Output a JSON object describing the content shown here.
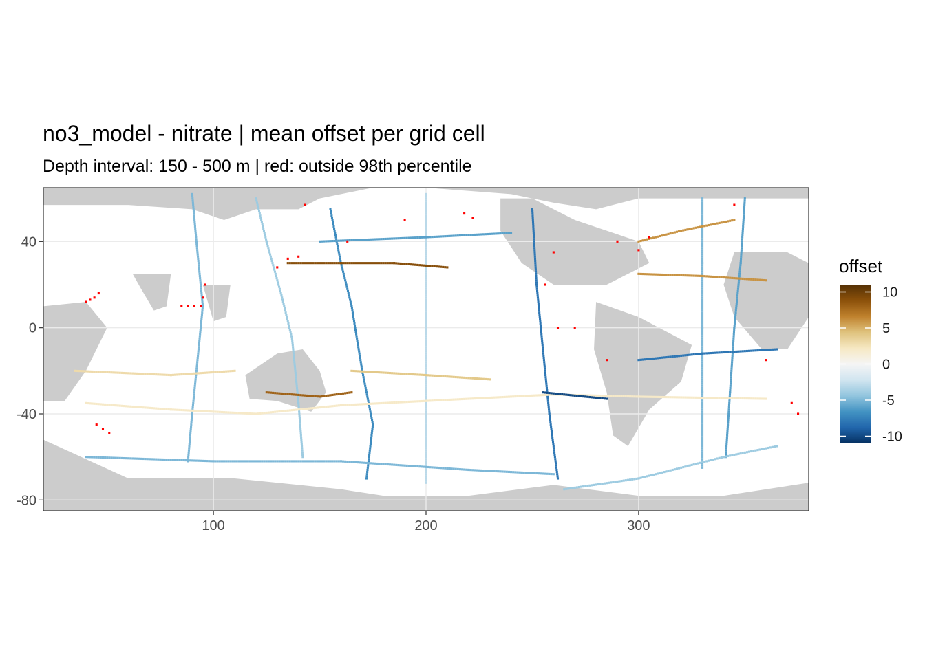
{
  "chart_data": {
    "type": "heatmap",
    "title": "no3_model - nitrate  | mean offset per grid cell",
    "subtitle": "Depth interval: 150 - 500 m | red: outside 98th percentile",
    "xlabel": "",
    "ylabel": "",
    "xlim": [
      20,
      380
    ],
    "ylim": [
      -85,
      65
    ],
    "x_ticks": [
      100,
      200,
      300
    ],
    "x_tick_labels": [
      "100",
      "200",
      "300"
    ],
    "y_ticks": [
      40,
      0,
      -40,
      -80
    ],
    "y_tick_labels": [
      "40",
      "0",
      "-40",
      "-80"
    ],
    "grid": true,
    "land_color": "#cccccc",
    "ocean_color": "#ffffff",
    "outlier_color": "#ff0000",
    "legend": {
      "title": "offset",
      "placement": "right",
      "range": [
        -11,
        11
      ],
      "ticks": [
        10,
        5,
        0,
        -5,
        -10
      ],
      "tick_labels": [
        "10",
        "5",
        "0",
        "-5",
        "-10"
      ],
      "colors": [
        "#053061",
        "#2166ac",
        "#4393c3",
        "#92c5de",
        "#d1e5f0",
        "#f5f5f5",
        "#f6e8c3",
        "#dfc27d",
        "#bf812d",
        "#8c510a",
        "#543005"
      ]
    },
    "transects": [
      {
        "points": [
          [
            90,
            62
          ],
          [
            92,
            40
          ],
          [
            95,
            10
          ],
          [
            93,
            -10
          ],
          [
            90,
            -40
          ],
          [
            88,
            -62
          ]
        ],
        "value": -5
      },
      {
        "points": [
          [
            120,
            60
          ],
          [
            125,
            40
          ],
          [
            132,
            15
          ],
          [
            137,
            -5
          ],
          [
            140,
            -35
          ],
          [
            142,
            -60
          ]
        ],
        "value": -4
      },
      {
        "points": [
          [
            155,
            55
          ],
          [
            160,
            30
          ],
          [
            165,
            10
          ],
          [
            170,
            -20
          ],
          [
            175,
            -45
          ],
          [
            172,
            -70
          ]
        ],
        "value": -7
      },
      {
        "points": [
          [
            200,
            62
          ],
          [
            200,
            30
          ],
          [
            200,
            0
          ],
          [
            200,
            -30
          ],
          [
            200,
            -72
          ]
        ],
        "value": -3
      },
      {
        "points": [
          [
            250,
            55
          ],
          [
            252,
            20
          ],
          [
            255,
            -10
          ],
          [
            258,
            -40
          ],
          [
            262,
            -70
          ]
        ],
        "value": -8
      },
      {
        "points": [
          [
            330,
            60
          ],
          [
            330,
            30
          ],
          [
            330,
            0
          ],
          [
            330,
            -30
          ],
          [
            330,
            -65
          ]
        ],
        "value": -5
      },
      {
        "points": [
          [
            350,
            60
          ],
          [
            348,
            30
          ],
          [
            345,
            0
          ],
          [
            343,
            -30
          ],
          [
            341,
            -60
          ]
        ],
        "value": -6
      },
      {
        "points": [
          [
            40,
            -35
          ],
          [
            80,
            -38
          ],
          [
            120,
            -40
          ],
          [
            160,
            -36
          ],
          [
            200,
            -34
          ],
          [
            260,
            -31
          ],
          [
            300,
            -32
          ],
          [
            360,
            -33
          ]
        ],
        "value": 2
      },
      {
        "points": [
          [
            135,
            30
          ],
          [
            160,
            30
          ],
          [
            185,
            30
          ],
          [
            210,
            28
          ]
        ],
        "value": 9
      },
      {
        "points": [
          [
            150,
            40
          ],
          [
            200,
            42
          ],
          [
            240,
            44
          ]
        ],
        "value": -6
      },
      {
        "points": [
          [
            35,
            -20
          ],
          [
            80,
            -22
          ],
          [
            110,
            -20
          ]
        ],
        "value": 3
      },
      {
        "points": [
          [
            165,
            -20
          ],
          [
            200,
            -22
          ],
          [
            230,
            -24
          ]
        ],
        "value": 4
      },
      {
        "points": [
          [
            300,
            25
          ],
          [
            330,
            24
          ],
          [
            360,
            22
          ]
        ],
        "value": 6
      },
      {
        "points": [
          [
            300,
            -15
          ],
          [
            330,
            -12
          ],
          [
            365,
            -10
          ]
        ],
        "value": -8
      },
      {
        "points": [
          [
            265,
            -75
          ],
          [
            300,
            -70
          ],
          [
            340,
            -60
          ],
          [
            365,
            -55
          ]
        ],
        "value": -4
      },
      {
        "points": [
          [
            40,
            -60
          ],
          [
            100,
            -62
          ],
          [
            160,
            -62
          ],
          [
            220,
            -66
          ],
          [
            260,
            -68
          ]
        ],
        "value": -5
      },
      {
        "points": [
          [
            255,
            -30
          ],
          [
            275,
            -32
          ],
          [
            285,
            -33
          ]
        ],
        "value": -10
      },
      {
        "points": [
          [
            300,
            40
          ],
          [
            320,
            45
          ],
          [
            345,
            50
          ]
        ],
        "value": 6
      },
      {
        "points": [
          [
            125,
            -30
          ],
          [
            150,
            -32
          ],
          [
            165,
            -30
          ]
        ],
        "value": 8
      }
    ],
    "outliers": [
      [
        40,
        12
      ],
      [
        42,
        13
      ],
      [
        44,
        14
      ],
      [
        46,
        16
      ],
      [
        85,
        10
      ],
      [
        88,
        10
      ],
      [
        91,
        10
      ],
      [
        94,
        10
      ],
      [
        95,
        14
      ],
      [
        96,
        20
      ],
      [
        45,
        -45
      ],
      [
        48,
        -47
      ],
      [
        51,
        -49
      ],
      [
        130,
        28
      ],
      [
        135,
        32
      ],
      [
        140,
        33
      ],
      [
        143,
        57
      ],
      [
        163,
        40
      ],
      [
        190,
        50
      ],
      [
        218,
        53
      ],
      [
        222,
        51
      ],
      [
        260,
        35
      ],
      [
        256,
        20
      ],
      [
        262,
        0
      ],
      [
        270,
        0
      ],
      [
        285,
        -15
      ],
      [
        290,
        40
      ],
      [
        300,
        36
      ],
      [
        305,
        42
      ],
      [
        345,
        57
      ],
      [
        360,
        -15
      ],
      [
        372,
        -35
      ],
      [
        375,
        -40
      ]
    ]
  }
}
